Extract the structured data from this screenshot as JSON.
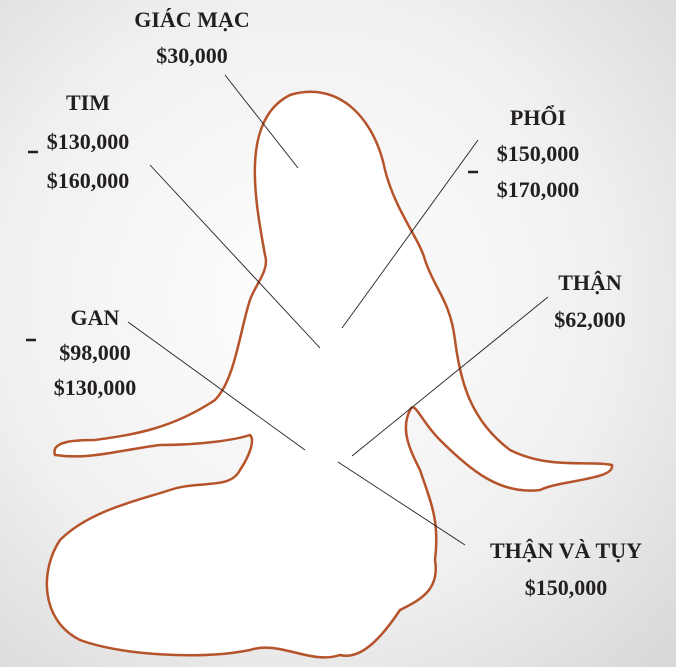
{
  "organs": [
    {
      "name": "GIÁC MẠC",
      "prices": [
        "$30,000"
      ]
    },
    {
      "name": "TIM",
      "prices": [
        "$130,000",
        "$160,000"
      ]
    },
    {
      "name": "PHỔI",
      "prices": [
        "$150,000",
        "$170,000"
      ]
    },
    {
      "name": "THẬN",
      "prices": [
        "$62,000"
      ]
    },
    {
      "name": "GAN",
      "prices": [
        "$98,000",
        "$130,000"
      ]
    },
    {
      "name": "THẬN VÀ TỤY",
      "prices": [
        "$150,000"
      ]
    }
  ]
}
